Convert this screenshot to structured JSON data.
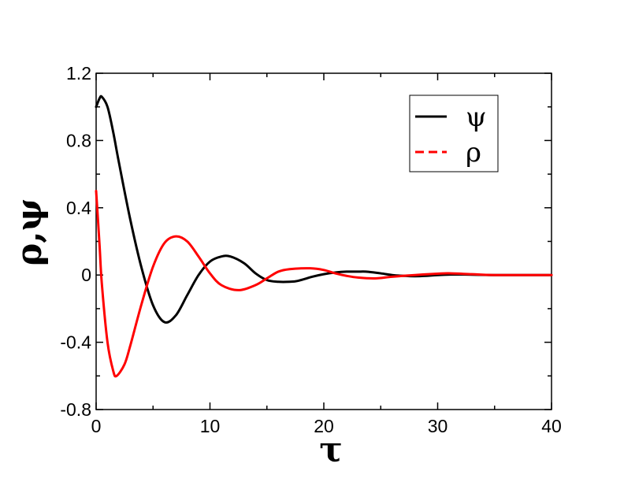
{
  "chart_data": {
    "type": "line",
    "xlabel": "τ",
    "ylabel": "ρ,ψ",
    "xlim": [
      0,
      40
    ],
    "ylim": [
      -0.8,
      1.2
    ],
    "xticks": [
      0,
      10,
      20,
      30,
      40
    ],
    "yticks": [
      -0.8,
      -0.4,
      0,
      0.4,
      0.8,
      1.2
    ],
    "xtick_labels": [
      "0",
      "10",
      "20",
      "30",
      "40"
    ],
    "ytick_labels": [
      "-0.8",
      "-0.4",
      "0",
      "0.4",
      "0.8",
      "1.2"
    ],
    "grid": false,
    "legend_position": "top-right",
    "series": [
      {
        "name": "ψ",
        "color": "#000000",
        "dash": "solid",
        "x": [
          0,
          0.3,
          0.5,
          1,
          1.5,
          2,
          3,
          4,
          5,
          6,
          7,
          8,
          9,
          10,
          11,
          11.8,
          13,
          14,
          15,
          16,
          17,
          17.7,
          19,
          20,
          21,
          22,
          23,
          23.7,
          25,
          26,
          27,
          28,
          29,
          30,
          32,
          35,
          40
        ],
        "y": [
          1.0,
          1.05,
          1.06,
          1.0,
          0.85,
          0.67,
          0.33,
          0.04,
          -0.18,
          -0.28,
          -0.24,
          -0.12,
          0.0,
          0.08,
          0.11,
          0.11,
          0.07,
          0.01,
          -0.03,
          -0.04,
          -0.04,
          -0.035,
          -0.01,
          0.005,
          0.015,
          0.02,
          0.02,
          0.02,
          0.01,
          0.0,
          -0.005,
          -0.007,
          -0.005,
          0.0,
          0.003,
          0.0,
          0.0
        ]
      },
      {
        "name": "ρ",
        "color": "#ff0000",
        "dash": "dashed",
        "x": [
          0,
          0.3,
          0.5,
          1,
          1.5,
          1.8,
          2.5,
          3,
          4,
          5,
          6,
          7,
          8,
          9,
          10,
          11,
          12.5,
          14,
          15,
          16,
          17,
          18.8,
          20,
          21,
          22,
          23,
          24.5,
          26,
          28,
          30,
          31,
          33,
          35,
          40
        ],
        "y": [
          0.5,
          0.18,
          -0.05,
          -0.4,
          -0.57,
          -0.6,
          -0.53,
          -0.42,
          -0.17,
          0.05,
          0.19,
          0.23,
          0.2,
          0.11,
          0.01,
          -0.06,
          -0.09,
          -0.06,
          -0.02,
          0.02,
          0.035,
          0.04,
          0.03,
          0.01,
          -0.005,
          -0.015,
          -0.02,
          -0.01,
          0.0,
          0.008,
          0.01,
          0.005,
          0.0,
          0.0
        ]
      }
    ]
  }
}
